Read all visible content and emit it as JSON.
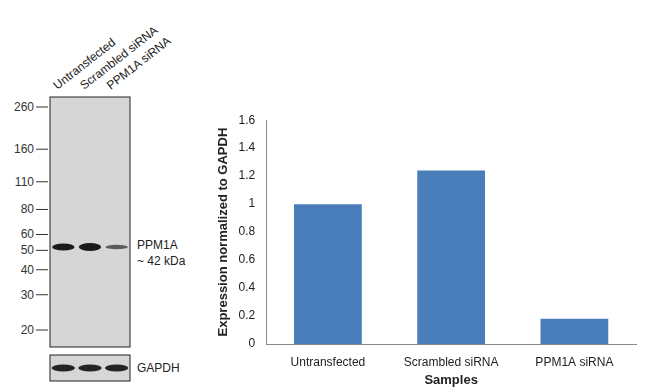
{
  "chart_data": {
    "type": "bar",
    "categories": [
      "Untransfected",
      "Scrambled siRNA",
      "PPM1A siRNA"
    ],
    "values": [
      1.0,
      1.24,
      0.18
    ],
    "color": "#4a7ebb",
    "x_label": "Samples",
    "y_label": "Expression normalized to GAPDH",
    "ylim": [
      0,
      1.6
    ],
    "yticks": [
      0,
      0.2,
      0.4,
      0.6,
      0.8,
      1,
      1.2,
      1.4,
      1.6
    ],
    "grid": false
  },
  "blot": {
    "lanes": [
      "Untransfected",
      "Scrambled siRNA",
      "PPM1A siRNA"
    ],
    "markers": [
      260,
      160,
      110,
      80,
      60,
      50,
      40,
      30,
      20
    ],
    "band_label": [
      "PPM1A",
      "~ 42 kDa"
    ],
    "loading_control": "GAPDH"
  }
}
